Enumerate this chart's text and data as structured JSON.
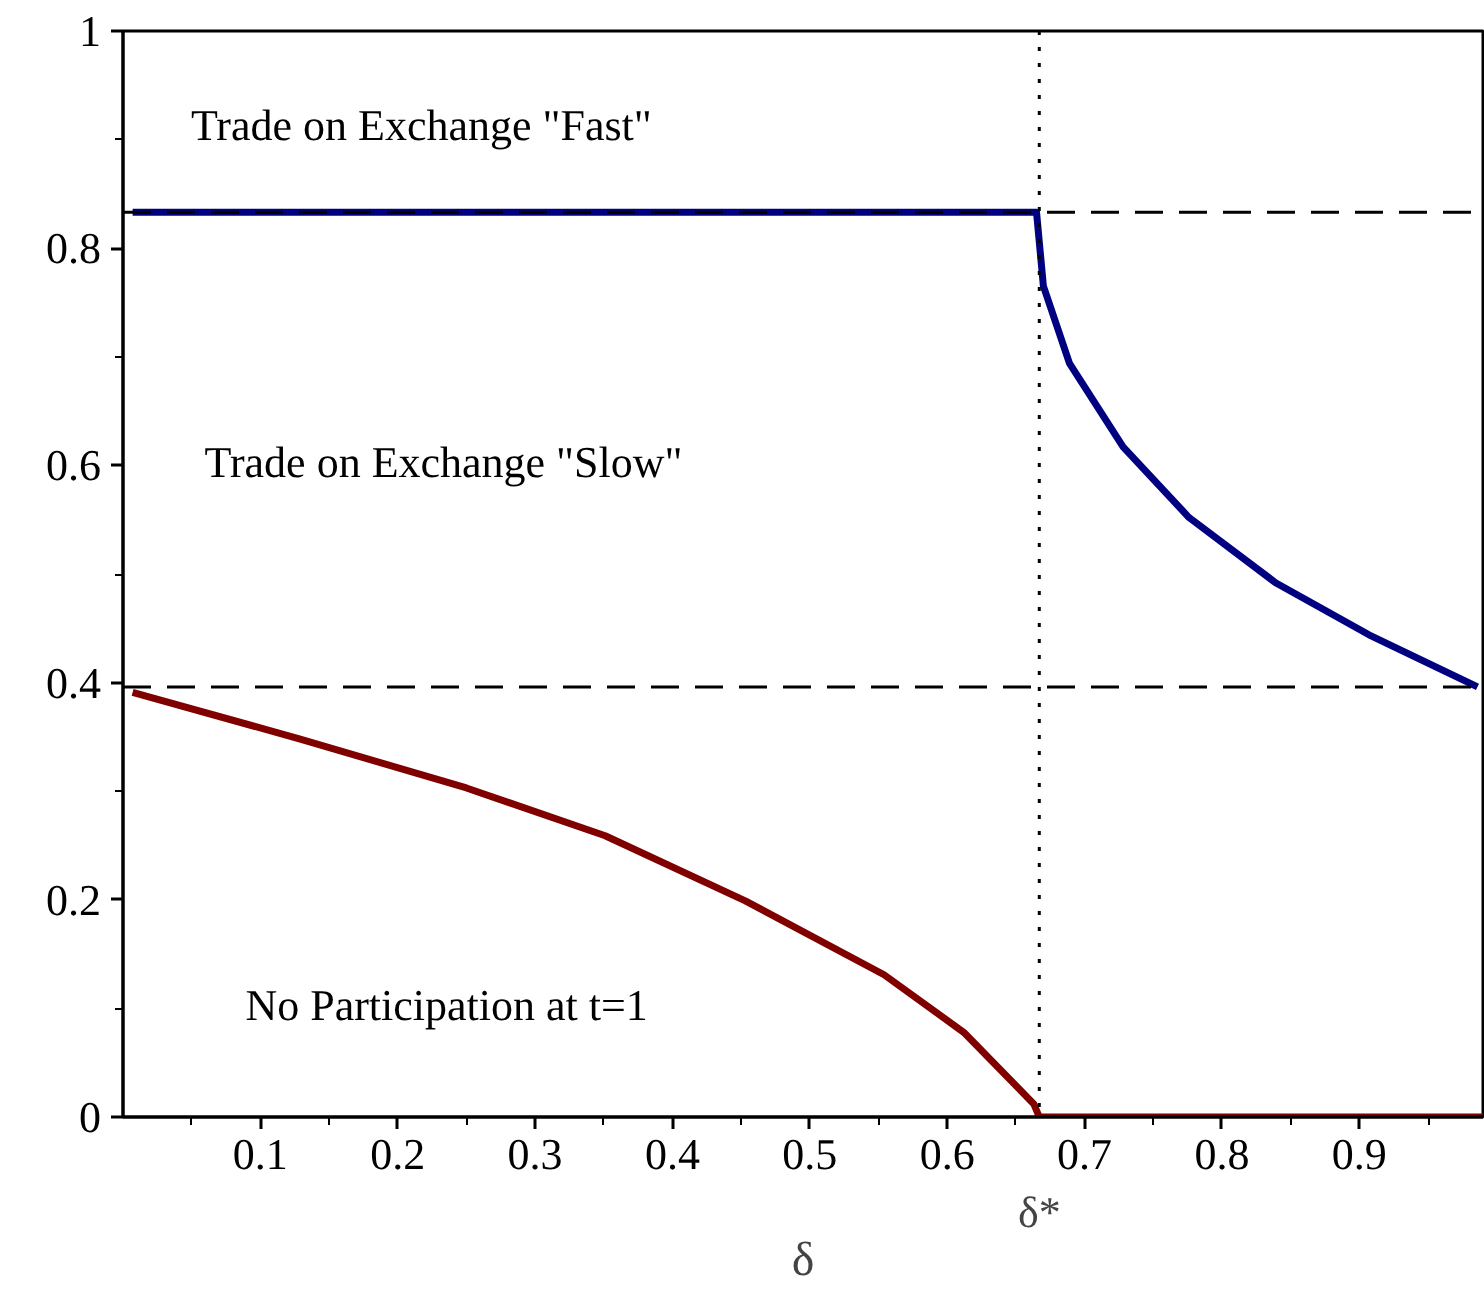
{
  "chart_data": {
    "type": "line",
    "xlabel": "δ",
    "x": [
      0.007,
      0.129,
      0.25,
      0.351,
      0.453,
      0.554,
      0.612,
      0.663,
      0.667,
      0.99
    ],
    "series": [
      {
        "color": "#000080",
        "x": [
          0.007,
          0.2,
          0.4,
          0.6,
          0.665,
          0.67,
          0.689,
          0.728,
          0.776,
          0.839,
          0.907,
          0.986
        ],
        "values": [
          0.833,
          0.833,
          0.833,
          0.833,
          0.833,
          0.765,
          0.694,
          0.617,
          0.552,
          0.492,
          0.444,
          0.396
        ]
      },
      {
        "color": "#800000",
        "values": [
          0.391,
          0.348,
          0.303,
          0.259,
          0.199,
          0.131,
          0.078,
          0.012,
          0.0,
          0.0
        ]
      }
    ],
    "xlim": [
      0,
      0.99
    ],
    "ylim": [
      0,
      1
    ],
    "xticks": [
      0.1,
      0.2,
      0.3,
      0.4,
      0.5,
      0.6,
      0.7,
      0.8,
      0.9
    ],
    "yticks": [
      0,
      0.2,
      0.4,
      0.6,
      0.8,
      1
    ],
    "ref_lines": [
      {
        "axis": "y",
        "value": 0.833,
        "line_style": "dashed"
      },
      {
        "axis": "y",
        "value": 0.396,
        "line_style": "dashed"
      },
      {
        "axis": "x",
        "value": 0.667,
        "label": "δ*",
        "line_style": "dotted"
      }
    ],
    "annotations": [
      "Trade on Exchange \"Fast\"",
      "Trade on Exchange \"Slow\"",
      "No Participation at t=1"
    ],
    "grid": false,
    "marker": "none",
    "line_style": "solid"
  }
}
